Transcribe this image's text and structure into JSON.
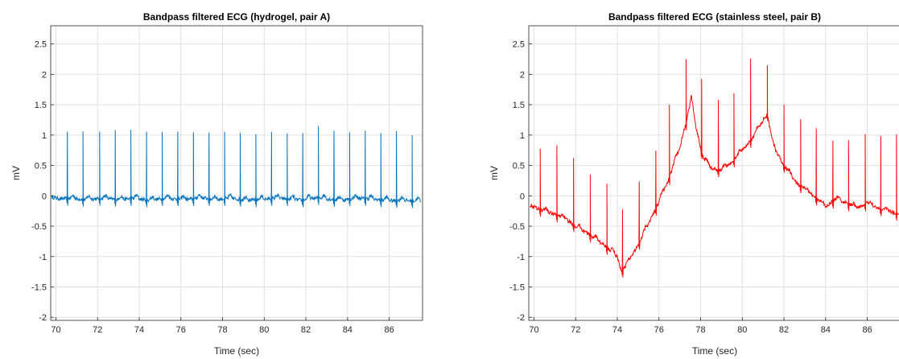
{
  "chart_data": [
    {
      "type": "line",
      "title": "Bandpass filtered ECG (hydrogel, pair A)",
      "xlabel": "Time (sec)",
      "ylabel": "mV",
      "xlim": [
        69.75,
        87.6
      ],
      "ylim": [
        -2.05,
        2.8
      ],
      "xticks": [
        "70",
        "72",
        "74",
        "76",
        "78",
        "80",
        "82",
        "84",
        "86"
      ],
      "yticks": [
        "-2",
        "-1.5",
        "-1",
        "-0.5",
        "0",
        "0.5",
        "1",
        "1.5",
        "2",
        "2.5"
      ],
      "grid": true,
      "series": [
        {
          "color": "#0072BD",
          "x": [
            69.8,
            70.2,
            70.6,
            71.0,
            71.4,
            71.8,
            72.2,
            72.6,
            73.0,
            73.4,
            73.8,
            74.2,
            74.6,
            75.0,
            75.4,
            75.8,
            76.2,
            76.6,
            77.0,
            77.4,
            77.8,
            78.2,
            78.6,
            79.0,
            79.4,
            79.8,
            80.2,
            80.6,
            81.0,
            81.4,
            81.8,
            82.2,
            82.6,
            83.0,
            83.4,
            83.8,
            84.2,
            84.6,
            85.0,
            85.4,
            85.8,
            86.2,
            86.6,
            87.0,
            87.5
          ],
          "y": [
            -0.02,
            -0.05,
            -0.04,
            -0.05,
            -0.06,
            -0.05,
            -0.04,
            -0.05,
            -0.06,
            -0.05,
            -0.04,
            -0.06,
            -0.07,
            -0.05,
            -0.04,
            -0.05,
            -0.06,
            -0.05,
            -0.03,
            -0.05,
            -0.06,
            -0.04,
            -0.05,
            -0.06,
            -0.07,
            -0.06,
            -0.05,
            -0.04,
            -0.05,
            -0.06,
            -0.07,
            -0.05,
            -0.03,
            -0.05,
            -0.06,
            -0.07,
            -0.05,
            -0.04,
            -0.05,
            -0.06,
            -0.07,
            -0.08,
            -0.07,
            -0.08,
            -0.09
          ],
          "r_peaks": {
            "t": [
              70.55,
              71.3,
              72.1,
              72.85,
              73.6,
              74.35,
              75.1,
              75.85,
              76.6,
              77.35,
              78.1,
              78.85,
              79.6,
              80.35,
              81.1,
              81.85,
              82.6,
              83.35,
              84.1,
              84.85,
              85.6,
              86.35,
              87.1
            ],
            "amp": [
              1.1,
              1.12,
              1.1,
              1.14,
              1.13,
              1.12,
              1.1,
              1.11,
              1.1,
              1.09,
              1.1,
              1.09,
              1.08,
              1.1,
              1.08,
              1.1,
              1.18,
              1.13,
              1.1,
              1.12,
              1.1,
              1.14,
              1.08
            ]
          }
        }
      ]
    },
    {
      "type": "line",
      "title": "Bandpass filtered ECG (stainless steel, pair B)",
      "xlabel": "Time (sec)",
      "ylabel": "mV",
      "xlim": [
        69.75,
        87.6
      ],
      "ylim": [
        -2.05,
        2.8
      ],
      "xticks": [
        "70",
        "72",
        "74",
        "76",
        "78",
        "80",
        "82",
        "84",
        "86"
      ],
      "yticks": [
        "-2",
        "-1.5",
        "-1",
        "-0.5",
        "0",
        "0.5",
        "1",
        "1.5",
        "2",
        "2.5"
      ],
      "grid": true,
      "series": [
        {
          "color": "#FF0000",
          "x": [
            69.8,
            70.5,
            71.0,
            71.5,
            72.0,
            72.5,
            73.0,
            73.5,
            74.0,
            74.2,
            74.6,
            75.0,
            75.5,
            76.0,
            76.5,
            77.0,
            77.3,
            77.55,
            77.8,
            78.1,
            78.5,
            79.0,
            79.5,
            80.0,
            80.5,
            81.0,
            81.2,
            81.5,
            82.0,
            82.5,
            83.0,
            83.5,
            84.0,
            84.5,
            85.0,
            85.5,
            86.0,
            86.5,
            87.0,
            87.5
          ],
          "y": [
            -0.15,
            -0.25,
            -0.3,
            -0.38,
            -0.5,
            -0.6,
            -0.72,
            -0.85,
            -1.0,
            -1.25,
            -1.05,
            -0.8,
            -0.45,
            -0.1,
            0.3,
            0.8,
            1.2,
            1.6,
            1.1,
            0.65,
            0.45,
            0.42,
            0.55,
            0.75,
            0.95,
            1.25,
            1.35,
            0.8,
            0.5,
            0.25,
            0.1,
            -0.02,
            -0.18,
            -0.05,
            -0.12,
            -0.2,
            -0.12,
            -0.2,
            -0.25,
            -0.3
          ],
          "r_peaks": {
            "t": [
              70.3,
              71.1,
              71.9,
              72.7,
              73.5,
              74.25,
              75.05,
              75.85,
              76.5,
              77.3,
              78.05,
              78.85,
              79.6,
              80.4,
              81.2,
              82.0,
              82.8,
              83.55,
              84.35,
              85.1,
              85.9,
              86.65,
              87.4
            ],
            "amp": [
              1.0,
              1.15,
              1.1,
              1.0,
              1.05,
              1.0,
              1.0,
              0.95,
              1.2,
              1.05,
              1.2,
              1.15,
              1.1,
              1.35,
              0.8,
              1.0,
              1.1,
              1.15,
              1.0,
              1.05,
              1.15,
              1.2,
              1.3
            ]
          }
        }
      ]
    }
  ]
}
